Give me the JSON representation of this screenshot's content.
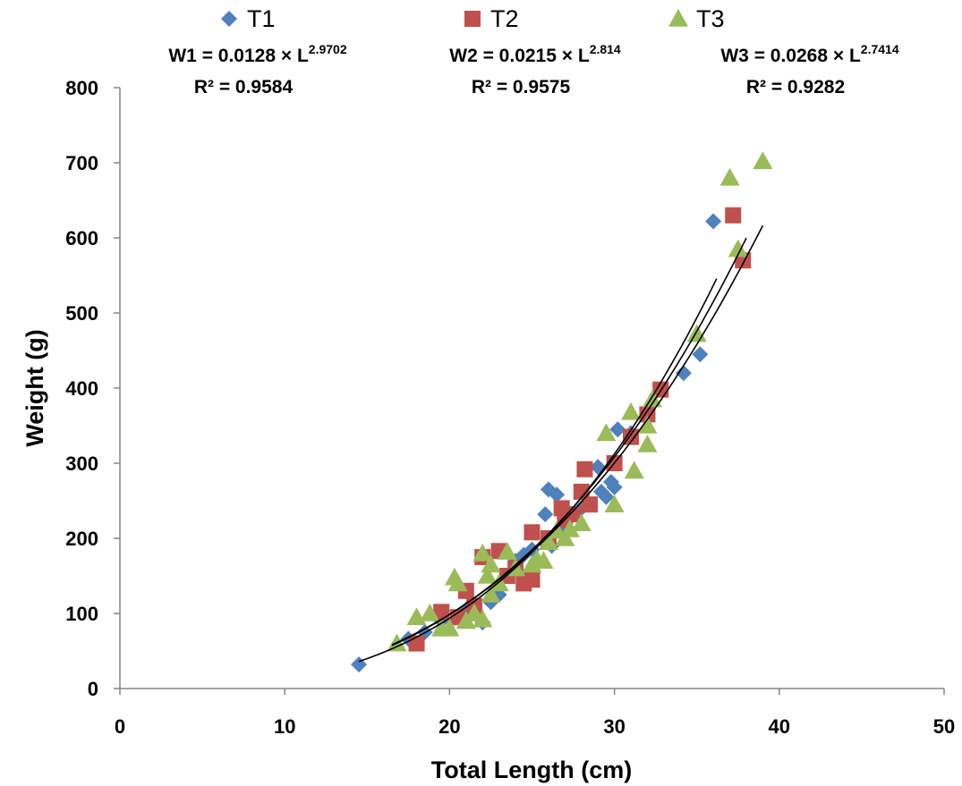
{
  "chart_data": {
    "type": "scatter",
    "xlabel": "Total Length (cm)",
    "ylabel": "Weight (g)",
    "xlim": [
      0,
      50
    ],
    "ylim": [
      0,
      800
    ],
    "xticks": [
      "0",
      "10",
      "20",
      "30",
      "40",
      "50"
    ],
    "yticks": [
      "0",
      "100",
      "200",
      "300",
      "400",
      "500",
      "600",
      "700",
      "800"
    ],
    "grid": false,
    "legend_position": "top",
    "series": [
      {
        "name": "T1",
        "marker": "diamond",
        "color": "#4f81bd",
        "equation_label": "W1 = 0.0128 × L",
        "equation_exponent": "2.9702",
        "r2_label": "R² = 0.9584",
        "fit": {
          "a": 0.0128,
          "b": 2.9702,
          "x_range": [
            14.5,
            36.2
          ]
        },
        "points": [
          [
            14.5,
            32
          ],
          [
            17.5,
            66
          ],
          [
            18.5,
            75
          ],
          [
            19.5,
            90
          ],
          [
            21,
            105
          ],
          [
            22,
            88
          ],
          [
            22.5,
            115
          ],
          [
            23,
            125
          ],
          [
            23.5,
            150
          ],
          [
            24,
            170
          ],
          [
            24.5,
            178
          ],
          [
            25,
            185
          ],
          [
            25.8,
            232
          ],
          [
            26,
            265
          ],
          [
            26.2,
            190
          ],
          [
            26.5,
            258
          ],
          [
            27,
            215
          ],
          [
            28,
            240
          ],
          [
            29,
            295
          ],
          [
            29.2,
            262
          ],
          [
            29.5,
            255
          ],
          [
            29.8,
            275
          ],
          [
            30,
            268
          ],
          [
            30.2,
            345
          ],
          [
            31,
            340
          ],
          [
            32,
            365
          ],
          [
            34.2,
            420
          ],
          [
            35.2,
            445
          ],
          [
            36,
            622
          ]
        ]
      },
      {
        "name": "T2",
        "marker": "square",
        "color": "#c0504d",
        "equation_label": "W2 = 0.0215 × L",
        "equation_exponent": "2.814",
        "r2_label": "R² = 0.9575",
        "fit": {
          "a": 0.0215,
          "b": 2.814,
          "x_range": [
            16.5,
            38
          ]
        },
        "points": [
          [
            18,
            60
          ],
          [
            19.5,
            102
          ],
          [
            20.5,
            95
          ],
          [
            21,
            130
          ],
          [
            21.5,
            110
          ],
          [
            22,
            175
          ],
          [
            23,
            183
          ],
          [
            23.5,
            150
          ],
          [
            24,
            160
          ],
          [
            24.5,
            140
          ],
          [
            25,
            145
          ],
          [
            25,
            208
          ],
          [
            26,
            200
          ],
          [
            26.8,
            240
          ],
          [
            27,
            225
          ],
          [
            27.5,
            232
          ],
          [
            28,
            262
          ],
          [
            28.2,
            292
          ],
          [
            28.5,
            245
          ],
          [
            30,
            300
          ],
          [
            31,
            335
          ],
          [
            32,
            365
          ],
          [
            32.8,
            398
          ],
          [
            37.2,
            630
          ],
          [
            37.8,
            570
          ]
        ]
      },
      {
        "name": "T3",
        "marker": "triangle",
        "color": "#9bbb59",
        "equation_label": "W3 = 0.0268 × L",
        "equation_exponent": "2.7414",
        "r2_label": "R² = 0.9282",
        "fit": {
          "a": 0.0268,
          "b": 2.7414,
          "x_range": [
            16.5,
            39
          ]
        },
        "points": [
          [
            16.8,
            60
          ],
          [
            18,
            95
          ],
          [
            18.8,
            100
          ],
          [
            19.5,
            80
          ],
          [
            20,
            80
          ],
          [
            20.3,
            148
          ],
          [
            20.5,
            140
          ],
          [
            21,
            90
          ],
          [
            21.5,
            100
          ],
          [
            22,
            92
          ],
          [
            22,
            180
          ],
          [
            22.3,
            150
          ],
          [
            22.5,
            125
          ],
          [
            22.5,
            165
          ],
          [
            23,
            140
          ],
          [
            23.5,
            182
          ],
          [
            24,
            160
          ],
          [
            25,
            165
          ],
          [
            25.3,
            172
          ],
          [
            25.7,
            170
          ],
          [
            26,
            195
          ],
          [
            26.5,
            210
          ],
          [
            27,
            200
          ],
          [
            27.3,
            212
          ],
          [
            28,
            220
          ],
          [
            29.5,
            340
          ],
          [
            30,
            245
          ],
          [
            31,
            368
          ],
          [
            31.2,
            290
          ],
          [
            32,
            325
          ],
          [
            32,
            350
          ],
          [
            32.3,
            385
          ],
          [
            35,
            472
          ],
          [
            37,
            680
          ],
          [
            37.5,
            585
          ],
          [
            39,
            702
          ]
        ]
      }
    ]
  }
}
